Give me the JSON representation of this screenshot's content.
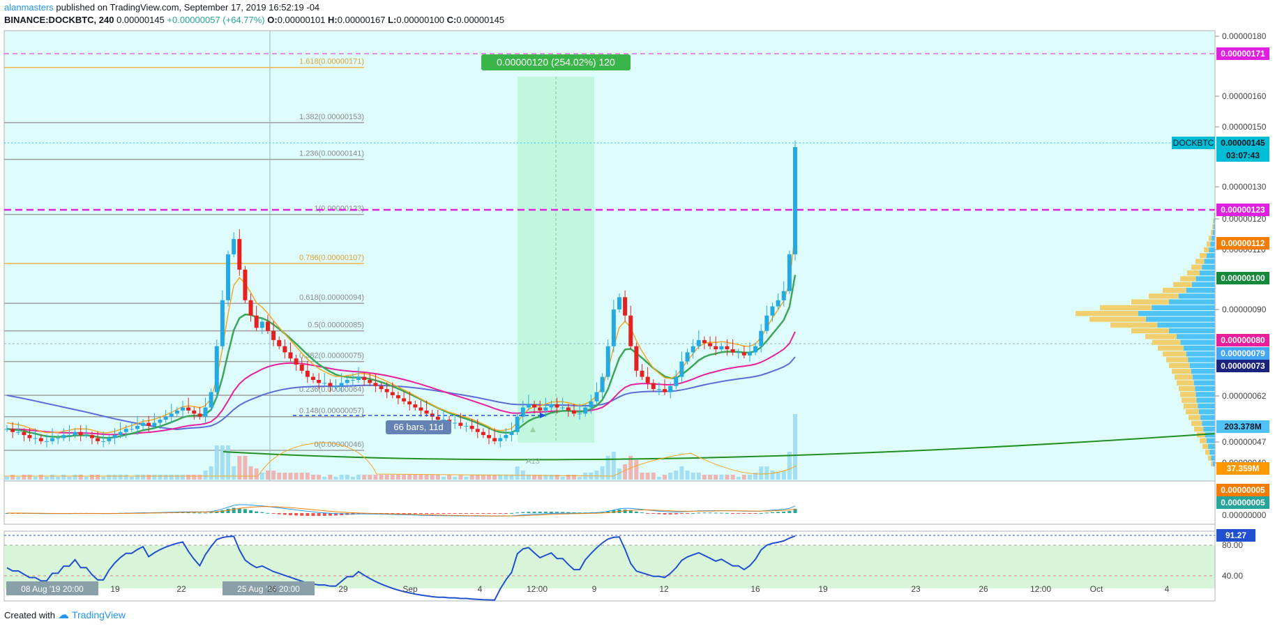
{
  "header": {
    "author": "alanmasters",
    "published": " published on TradingView.com, September 17, 2019 16:52:19 -04",
    "symbol": "BINANCE:DOCKBTC, 240",
    "last": "0.00000145",
    "change": "+0.00000057 (+64.77%)",
    "o_label": "O:",
    "o": "0.00000101",
    "h_label": "H:",
    "h": "0.00000167",
    "l_label": "L:",
    "l": "0.00000100",
    "c_label": "C:",
    "c": "0.00000145"
  },
  "footer": {
    "created": "Created with",
    "brand": "TradingView"
  },
  "colors": {
    "background": "#dffcfc",
    "up": "#26a9e0",
    "down": "#e61f1f",
    "ema_fast": "#f5a623",
    "ema_mid": "#3aa757",
    "ema_slow": "#e91e9c",
    "ma_long": "#5a6cd6",
    "fib": "#9e9e9e",
    "fib_gold": "#f0b44c",
    "magenta": "#e020e0",
    "trend": "#1e8e1e"
  },
  "chart_data": {
    "type": "candlestick",
    "symbol": "BINANCE:DOCKBTC",
    "timeframe": "240",
    "x_ticks": [
      "08 Aug '19  20:00",
      "19",
      "22",
      "25 Aug '19  20:00",
      "26",
      "29",
      "Sep",
      "4",
      "12:00",
      "9",
      "12",
      "16",
      "19",
      "23",
      "26",
      "12:00",
      "Oct",
      "4"
    ],
    "y_ticks": [
      "0.00000180",
      "0.00000160",
      "0.00000150",
      "0.00000130",
      "0.00000120",
      "0.00000110",
      "0.00000090",
      "0.00000062",
      "0.00000047",
      "0.00000040"
    ],
    "ylim": [
      3.6e-07,
      1.83e-06
    ],
    "price_labels": {
      "fib_top": "0.00000171",
      "symbol_tag": "DOCKBTC",
      "last": "0.00000145",
      "countdown": "03:07:43",
      "fib_one": "0.00000123",
      "ema_fast": "0.00000112",
      "ema_mid": "0.00000100",
      "ema_slow": "0.00000080",
      "poc": "0.00000079",
      "ma_long": "0.00000073",
      "volume": "203.378M",
      "volume_ma": "37.359M"
    },
    "fib_levels": [
      {
        "label": "1.618(0.00000171)",
        "value": 1.71e-06
      },
      {
        "label": "1.382(0.00000153)",
        "value": 1.53e-06
      },
      {
        "label": "1.236(0.00000141)",
        "value": 1.41e-06
      },
      {
        "label": "1(0.00000123)",
        "value": 1.23e-06
      },
      {
        "label": "0.786(0.00000107)",
        "value": 1.07e-06
      },
      {
        "label": "0.618(0.00000094)",
        "value": 9.4e-07
      },
      {
        "label": "0.5(0.00000085)",
        "value": 8.5e-07
      },
      {
        "label": "0.382(0.00000075)",
        "value": 7.5e-07
      },
      {
        "label": "0.236(0.00000064)",
        "value": 6.4e-07
      },
      {
        "label": "0.148(0.00000057)",
        "value": 5.7e-07
      },
      {
        "label": "0(0.00000046)",
        "value": 4.6e-07
      }
    ],
    "measure_label": "0.00000120 (254.02%) 120",
    "bars_label": "66 bars, 11d",
    "annotation_a13": "A13",
    "macd": {
      "labels": [
        "0.00000005",
        "0.00000005",
        "0.00000000"
      ]
    },
    "rsi": {
      "value": "91.27",
      "levels": [
        "80.00",
        "40.00"
      ]
    },
    "closes": [
      53,
      52,
      52,
      51,
      50,
      50,
      49,
      49,
      50,
      50,
      51,
      51,
      52,
      51,
      51,
      50,
      49,
      49,
      50,
      51,
      52,
      53,
      53,
      54,
      55,
      54,
      55,
      56,
      57,
      58,
      59,
      60,
      59,
      58,
      57,
      60,
      65,
      80,
      95,
      110,
      115,
      105,
      95,
      90,
      86,
      88,
      85,
      82,
      80,
      78,
      76,
      74,
      72,
      70,
      69,
      68,
      68,
      67,
      67,
      68,
      69,
      69,
      70,
      69,
      68,
      67,
      66,
      65,
      64,
      63,
      62,
      61,
      60,
      59,
      58,
      57,
      56,
      56,
      55,
      55,
      54,
      54,
      53,
      52,
      51,
      50,
      49,
      50,
      51,
      52,
      57,
      60,
      61,
      60,
      59,
      60,
      61,
      60,
      60,
      59,
      58,
      58,
      60,
      62,
      65,
      70,
      80,
      92,
      96,
      90,
      80,
      72,
      70,
      68,
      66,
      66,
      65,
      67,
      70,
      75,
      78,
      80,
      82,
      81,
      80,
      79,
      80,
      79,
      78,
      78,
      77,
      78,
      80,
      85,
      90,
      93,
      95,
      98,
      110,
      145
    ]
  }
}
